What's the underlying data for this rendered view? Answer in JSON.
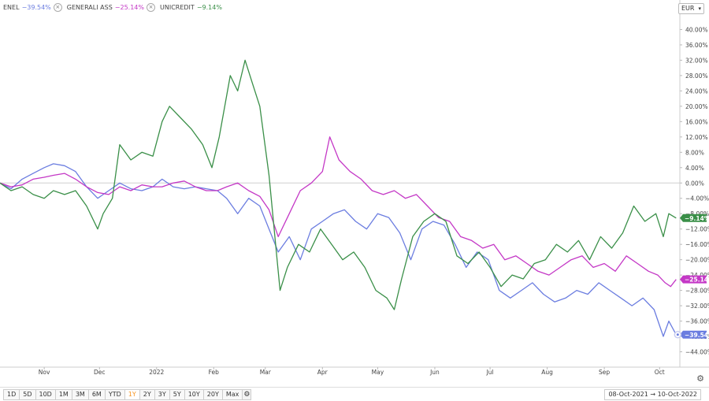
{
  "legend": [
    {
      "name": "ENEL",
      "value": "−39.54%",
      "color": "#6b7de0"
    },
    {
      "name": "GENERALI ASS",
      "value": "−25.14%",
      "color": "#c438c6"
    },
    {
      "name": "UNICREDIT",
      "value": "−9.14%",
      "color": "#3a8f48"
    }
  ],
  "currency": "EUR",
  "ranges": [
    "1D",
    "5D",
    "10D",
    "1M",
    "3M",
    "6M",
    "YTD",
    "1Y",
    "2Y",
    "3Y",
    "5Y",
    "10Y",
    "20Y",
    "Max"
  ],
  "active_range": "1Y",
  "date_range": "08-Oct-2021 → 10-Oct-2022",
  "chart_data": {
    "type": "line",
    "x_tick_labels": [
      "Nov",
      "Dec",
      "2022",
      "Feb",
      "Mar",
      "Apr",
      "May",
      "Jun",
      "Jul",
      "Aug",
      "Sep",
      "Oct"
    ],
    "x_tick_dates": [
      "2021-11-01",
      "2021-12-01",
      "2022-01-01",
      "2022-02-01",
      "2022-03-01",
      "2022-04-01",
      "2022-05-01",
      "2022-06-01",
      "2022-07-01",
      "2022-08-01",
      "2022-09-01",
      "2022-10-01"
    ],
    "x_range": [
      "2021-10-08",
      "2022-10-12"
    ],
    "ylim": [
      -48,
      44
    ],
    "y_ticks": [
      40,
      36,
      32,
      28,
      24,
      20,
      16,
      12,
      8,
      4,
      0,
      -4,
      -8,
      -12,
      -16,
      -20,
      -24,
      -28,
      -32,
      -36,
      -40,
      -44
    ],
    "y_tick_labels": [
      "40.00%",
      "36.00%",
      "32.00%",
      "28.00%",
      "24.00%",
      "20.00%",
      "16.00%",
      "12.00%",
      "8.00%",
      "4.00%",
      "0.00%",
      "−4.00%",
      "−8.00%",
      "−12.00%",
      "−16.00%",
      "−20.00%",
      "−24.00%",
      "−28.00%",
      "−32.00%",
      "−36.00%",
      "−40.00%",
      "−44.00%"
    ],
    "zero_line": 0,
    "series": [
      {
        "name": "ENEL",
        "color": "#6b7de0",
        "last_label": "−39.54%",
        "points": [
          [
            "2021-10-08",
            0
          ],
          [
            "2021-10-14",
            -1.5
          ],
          [
            "2021-10-20",
            1
          ],
          [
            "2021-10-26",
            2.5
          ],
          [
            "2021-11-01",
            4
          ],
          [
            "2021-11-06",
            5
          ],
          [
            "2021-11-12",
            4.5
          ],
          [
            "2021-11-18",
            3
          ],
          [
            "2021-11-24",
            -1
          ],
          [
            "2021-11-30",
            -4
          ],
          [
            "2021-12-06",
            -2
          ],
          [
            "2021-12-12",
            0
          ],
          [
            "2021-12-18",
            -1.5
          ],
          [
            "2021-12-24",
            -2
          ],
          [
            "2021-12-30",
            -1
          ],
          [
            "2022-01-04",
            1
          ],
          [
            "2022-01-10",
            -1
          ],
          [
            "2022-01-16",
            -1.5
          ],
          [
            "2022-01-22",
            -1
          ],
          [
            "2022-01-28",
            -1.5
          ],
          [
            "2022-02-03",
            -2
          ],
          [
            "2022-02-08",
            -4
          ],
          [
            "2022-02-14",
            -8
          ],
          [
            "2022-02-20",
            -4
          ],
          [
            "2022-02-26",
            -6
          ],
          [
            "2022-03-03",
            -12
          ],
          [
            "2022-03-08",
            -18
          ],
          [
            "2022-03-14",
            -14
          ],
          [
            "2022-03-20",
            -20
          ],
          [
            "2022-03-26",
            -12
          ],
          [
            "2022-04-01",
            -10
          ],
          [
            "2022-04-07",
            -8
          ],
          [
            "2022-04-13",
            -7
          ],
          [
            "2022-04-19",
            -10
          ],
          [
            "2022-04-25",
            -12
          ],
          [
            "2022-05-01",
            -8
          ],
          [
            "2022-05-07",
            -9
          ],
          [
            "2022-05-13",
            -13
          ],
          [
            "2022-05-19",
            -20
          ],
          [
            "2022-05-25",
            -12
          ],
          [
            "2022-05-31",
            -10
          ],
          [
            "2022-06-06",
            -11
          ],
          [
            "2022-06-12",
            -16
          ],
          [
            "2022-06-18",
            -22
          ],
          [
            "2022-06-24",
            -18
          ],
          [
            "2022-06-30",
            -20
          ],
          [
            "2022-07-06",
            -28
          ],
          [
            "2022-07-12",
            -30
          ],
          [
            "2022-07-18",
            -28
          ],
          [
            "2022-07-24",
            -26
          ],
          [
            "2022-07-30",
            -29
          ],
          [
            "2022-08-05",
            -31
          ],
          [
            "2022-08-11",
            -30
          ],
          [
            "2022-08-17",
            -28
          ],
          [
            "2022-08-23",
            -29
          ],
          [
            "2022-08-29",
            -26
          ],
          [
            "2022-09-04",
            -28
          ],
          [
            "2022-09-10",
            -30
          ],
          [
            "2022-09-16",
            -32
          ],
          [
            "2022-09-22",
            -30
          ],
          [
            "2022-09-28",
            -33
          ],
          [
            "2022-10-03",
            -40
          ],
          [
            "2022-10-06",
            -36
          ],
          [
            "2022-10-10",
            -39.54
          ]
        ]
      },
      {
        "name": "GENERALI ASS",
        "color": "#c438c6",
        "last_label": "−25.14%",
        "points": [
          [
            "2021-10-08",
            0
          ],
          [
            "2021-10-14",
            -1
          ],
          [
            "2021-10-20",
            -0.5
          ],
          [
            "2021-10-26",
            1
          ],
          [
            "2021-11-01",
            1.5
          ],
          [
            "2021-11-06",
            2
          ],
          [
            "2021-11-12",
            2.5
          ],
          [
            "2021-11-18",
            1
          ],
          [
            "2021-11-24",
            -1
          ],
          [
            "2021-11-30",
            -2.5
          ],
          [
            "2021-12-06",
            -3
          ],
          [
            "2021-12-12",
            -1
          ],
          [
            "2021-12-18",
            -2
          ],
          [
            "2021-12-24",
            -0.5
          ],
          [
            "2021-12-30",
            -1
          ],
          [
            "2022-01-04",
            -1
          ],
          [
            "2022-01-10",
            0
          ],
          [
            "2022-01-16",
            0.5
          ],
          [
            "2022-01-22",
            -1
          ],
          [
            "2022-01-28",
            -2
          ],
          [
            "2022-02-03",
            -2
          ],
          [
            "2022-02-08",
            -1
          ],
          [
            "2022-02-14",
            0
          ],
          [
            "2022-02-20",
            -2
          ],
          [
            "2022-02-26",
            -3.5
          ],
          [
            "2022-03-03",
            -7
          ],
          [
            "2022-03-08",
            -14
          ],
          [
            "2022-03-14",
            -8
          ],
          [
            "2022-03-20",
            -2
          ],
          [
            "2022-03-26",
            0
          ],
          [
            "2022-04-01",
            3
          ],
          [
            "2022-04-05",
            12
          ],
          [
            "2022-04-10",
            6
          ],
          [
            "2022-04-16",
            3
          ],
          [
            "2022-04-22",
            1
          ],
          [
            "2022-04-28",
            -2
          ],
          [
            "2022-05-04",
            -3
          ],
          [
            "2022-05-10",
            -2
          ],
          [
            "2022-05-16",
            -4
          ],
          [
            "2022-05-22",
            -3
          ],
          [
            "2022-05-28",
            -6
          ],
          [
            "2022-06-03",
            -9
          ],
          [
            "2022-06-09",
            -10
          ],
          [
            "2022-06-15",
            -14
          ],
          [
            "2022-06-21",
            -15
          ],
          [
            "2022-06-27",
            -17
          ],
          [
            "2022-07-03",
            -16
          ],
          [
            "2022-07-09",
            -20
          ],
          [
            "2022-07-15",
            -19
          ],
          [
            "2022-07-21",
            -21
          ],
          [
            "2022-07-27",
            -23
          ],
          [
            "2022-08-02",
            -24
          ],
          [
            "2022-08-08",
            -22
          ],
          [
            "2022-08-14",
            -20
          ],
          [
            "2022-08-20",
            -19
          ],
          [
            "2022-08-26",
            -22
          ],
          [
            "2022-09-01",
            -21
          ],
          [
            "2022-09-07",
            -23
          ],
          [
            "2022-09-13",
            -19
          ],
          [
            "2022-09-19",
            -21
          ],
          [
            "2022-09-25",
            -23
          ],
          [
            "2022-09-30",
            -24
          ],
          [
            "2022-10-04",
            -26
          ],
          [
            "2022-10-07",
            -27
          ],
          [
            "2022-10-10",
            -25.14
          ]
        ]
      },
      {
        "name": "UNICREDIT",
        "color": "#3a8f48",
        "last_label": "−9.14%",
        "points": [
          [
            "2021-10-08",
            0
          ],
          [
            "2021-10-14",
            -2
          ],
          [
            "2021-10-20",
            -1
          ],
          [
            "2021-10-26",
            -3
          ],
          [
            "2021-11-01",
            -4
          ],
          [
            "2021-11-06",
            -2
          ],
          [
            "2021-11-12",
            -3
          ],
          [
            "2021-11-18",
            -2
          ],
          [
            "2021-11-24",
            -6
          ],
          [
            "2021-11-30",
            -12
          ],
          [
            "2021-12-03",
            -8
          ],
          [
            "2021-12-08",
            -4
          ],
          [
            "2021-12-12",
            10
          ],
          [
            "2021-12-18",
            6
          ],
          [
            "2021-12-24",
            8
          ],
          [
            "2021-12-30",
            7
          ],
          [
            "2022-01-04",
            16
          ],
          [
            "2022-01-08",
            20
          ],
          [
            "2022-01-14",
            17
          ],
          [
            "2022-01-20",
            14
          ],
          [
            "2022-01-26",
            10
          ],
          [
            "2022-01-31",
            4
          ],
          [
            "2022-02-04",
            12
          ],
          [
            "2022-02-10",
            28
          ],
          [
            "2022-02-14",
            24
          ],
          [
            "2022-02-18",
            32
          ],
          [
            "2022-02-22",
            26
          ],
          [
            "2022-02-26",
            20
          ],
          [
            "2022-03-03",
            2
          ],
          [
            "2022-03-07",
            -18
          ],
          [
            "2022-03-09",
            -28
          ],
          [
            "2022-03-13",
            -22
          ],
          [
            "2022-03-19",
            -16
          ],
          [
            "2022-03-25",
            -18
          ],
          [
            "2022-03-31",
            -12
          ],
          [
            "2022-04-06",
            -16
          ],
          [
            "2022-04-12",
            -20
          ],
          [
            "2022-04-18",
            -18
          ],
          [
            "2022-04-24",
            -22
          ],
          [
            "2022-04-30",
            -28
          ],
          [
            "2022-05-06",
            -30
          ],
          [
            "2022-05-10",
            -33
          ],
          [
            "2022-05-14",
            -25
          ],
          [
            "2022-05-20",
            -14
          ],
          [
            "2022-05-26",
            -10
          ],
          [
            "2022-06-01",
            -8
          ],
          [
            "2022-06-07",
            -10
          ],
          [
            "2022-06-13",
            -19
          ],
          [
            "2022-06-19",
            -21
          ],
          [
            "2022-06-25",
            -18
          ],
          [
            "2022-07-01",
            -22
          ],
          [
            "2022-07-07",
            -27
          ],
          [
            "2022-07-13",
            -24
          ],
          [
            "2022-07-19",
            -25
          ],
          [
            "2022-07-25",
            -21
          ],
          [
            "2022-07-31",
            -20
          ],
          [
            "2022-08-06",
            -16
          ],
          [
            "2022-08-12",
            -18
          ],
          [
            "2022-08-18",
            -15
          ],
          [
            "2022-08-24",
            -20
          ],
          [
            "2022-08-30",
            -14
          ],
          [
            "2022-09-05",
            -17
          ],
          [
            "2022-09-11",
            -13
          ],
          [
            "2022-09-17",
            -6
          ],
          [
            "2022-09-23",
            -10
          ],
          [
            "2022-09-29",
            -8
          ],
          [
            "2022-10-03",
            -14
          ],
          [
            "2022-10-06",
            -8
          ],
          [
            "2022-10-10",
            -9.14
          ]
        ]
      }
    ]
  }
}
